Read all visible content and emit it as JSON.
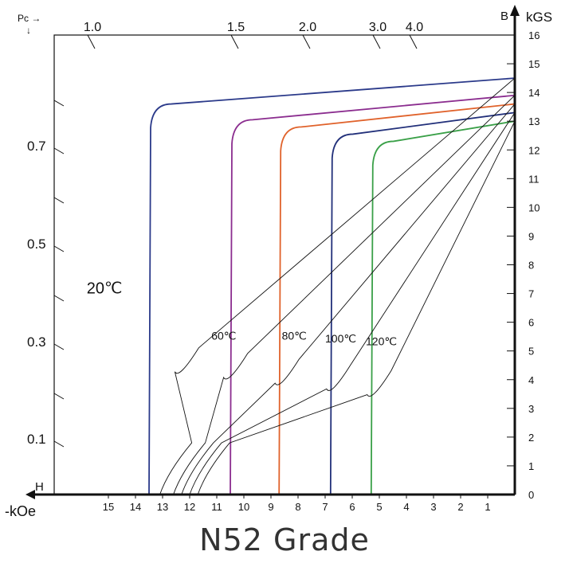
{
  "chart_data": {
    "type": "line",
    "title": "N52 Grade",
    "x_axis": {
      "label": "-kOe",
      "arrow_label": "H",
      "range": [
        0,
        17
      ],
      "ticks": [
        "15",
        "14",
        "13",
        "12",
        "11",
        "10",
        "9",
        "8",
        "7",
        "6",
        "5",
        "4",
        "3",
        "2",
        "1"
      ],
      "tick_values": [
        15,
        14,
        13,
        12,
        11,
        10,
        9,
        8,
        7,
        6,
        5,
        4,
        3,
        2,
        1
      ],
      "direction": "reversed"
    },
    "y_axis": {
      "label": "kGS",
      "arrow_label": "B",
      "position": "right",
      "range": [
        0,
        16
      ],
      "ticks": [
        "16",
        "15",
        "14",
        "13",
        "12",
        "11",
        "10",
        "9",
        "8",
        "7",
        "6",
        "5",
        "4",
        "3",
        "2",
        "1",
        "0"
      ],
      "tick_values": [
        16,
        15,
        14,
        13,
        12,
        11,
        10,
        9,
        8,
        7,
        6,
        5,
        4,
        3,
        2,
        1,
        0
      ]
    },
    "pc_scale": {
      "label": "Pc →",
      "left_ticks": [
        "0.7",
        "0.5",
        "0.3",
        "0.1"
      ],
      "left_tick_values": [
        0.7,
        0.5,
        0.3,
        0.1
      ],
      "top_ticks": [
        "1.0",
        "1.5",
        "2.0",
        "3.0",
        "4.0"
      ],
      "top_tick_values": [
        1.0,
        1.5,
        2.0,
        3.0,
        4.0
      ]
    },
    "series": [
      {
        "name": "20℃",
        "color": "#2b3a8a",
        "label_H": 15.8,
        "label_B": 7.0,
        "Br": 14.5,
        "Hk": 12.9,
        "Hcj": 13.5
      },
      {
        "name": "60℃",
        "color": "#8b2d8f",
        "label_H": 11.2,
        "label_B": 5.4,
        "Br": 13.9,
        "Hk": 10.0,
        "Hcj": 10.5
      },
      {
        "name": "80℃",
        "color": "#e0622b",
        "label_H": 8.6,
        "label_B": 5.4,
        "Br": 13.6,
        "Hk": 8.2,
        "Hcj": 8.7
      },
      {
        "name": "100℃",
        "color": "#22307a",
        "label_H": 7.0,
        "label_B": 5.3,
        "Br": 13.3,
        "Hk": 6.4,
        "Hcj": 6.8
      },
      {
        "name": "120℃",
        "color": "#3aa048",
        "label_H": 5.5,
        "label_B": 5.2,
        "Br": 13.0,
        "Hk": 4.9,
        "Hcj": 5.3
      }
    ],
    "normal_curves": [
      {
        "Br": 14.5,
        "Hc": 13.1,
        "knee_H": 12.4
      },
      {
        "Br": 13.9,
        "Hc": 12.6,
        "knee_H": 10.6
      },
      {
        "Br": 13.6,
        "Hc": 12.3,
        "knee_H": 8.7
      },
      {
        "Br": 13.3,
        "Hc": 12.0,
        "knee_H": 6.8
      },
      {
        "Br": 13.0,
        "Hc": 11.7,
        "knee_H": 5.3
      }
    ],
    "grid": false,
    "legend": "none"
  }
}
